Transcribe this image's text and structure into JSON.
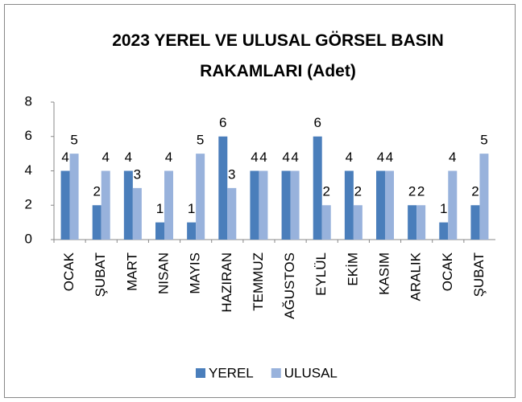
{
  "chart_data": {
    "type": "bar",
    "title": "2023 YEREL VE ULUSAL GÖRSEL BASIN RAKAMLARI (Adet)",
    "categories": [
      "OCAK",
      "ŞUBAT",
      "MART",
      "NISAN",
      "MAYIS",
      "HAZIRAN",
      "TEMMUZ",
      "AĞUSTOS",
      "EYLÜL",
      "EKİM",
      "KASIM",
      "ARALIK",
      "OCAK",
      "ŞUBAT"
    ],
    "series": [
      {
        "name": "YEREL",
        "color": "#4a7ebb",
        "values": [
          4,
          2,
          4,
          1,
          1,
          6,
          4,
          4,
          6,
          4,
          4,
          2,
          1,
          2
        ]
      },
      {
        "name": "ULUSAL",
        "color": "#98b2dc",
        "values": [
          5,
          4,
          3,
          4,
          5,
          3,
          4,
          4,
          2,
          2,
          4,
          2,
          4,
          5
        ]
      }
    ],
    "ylim": [
      0,
      8
    ],
    "yticks": [
      0,
      2,
      4,
      6,
      8
    ],
    "grid": false,
    "legend": "bottom"
  }
}
